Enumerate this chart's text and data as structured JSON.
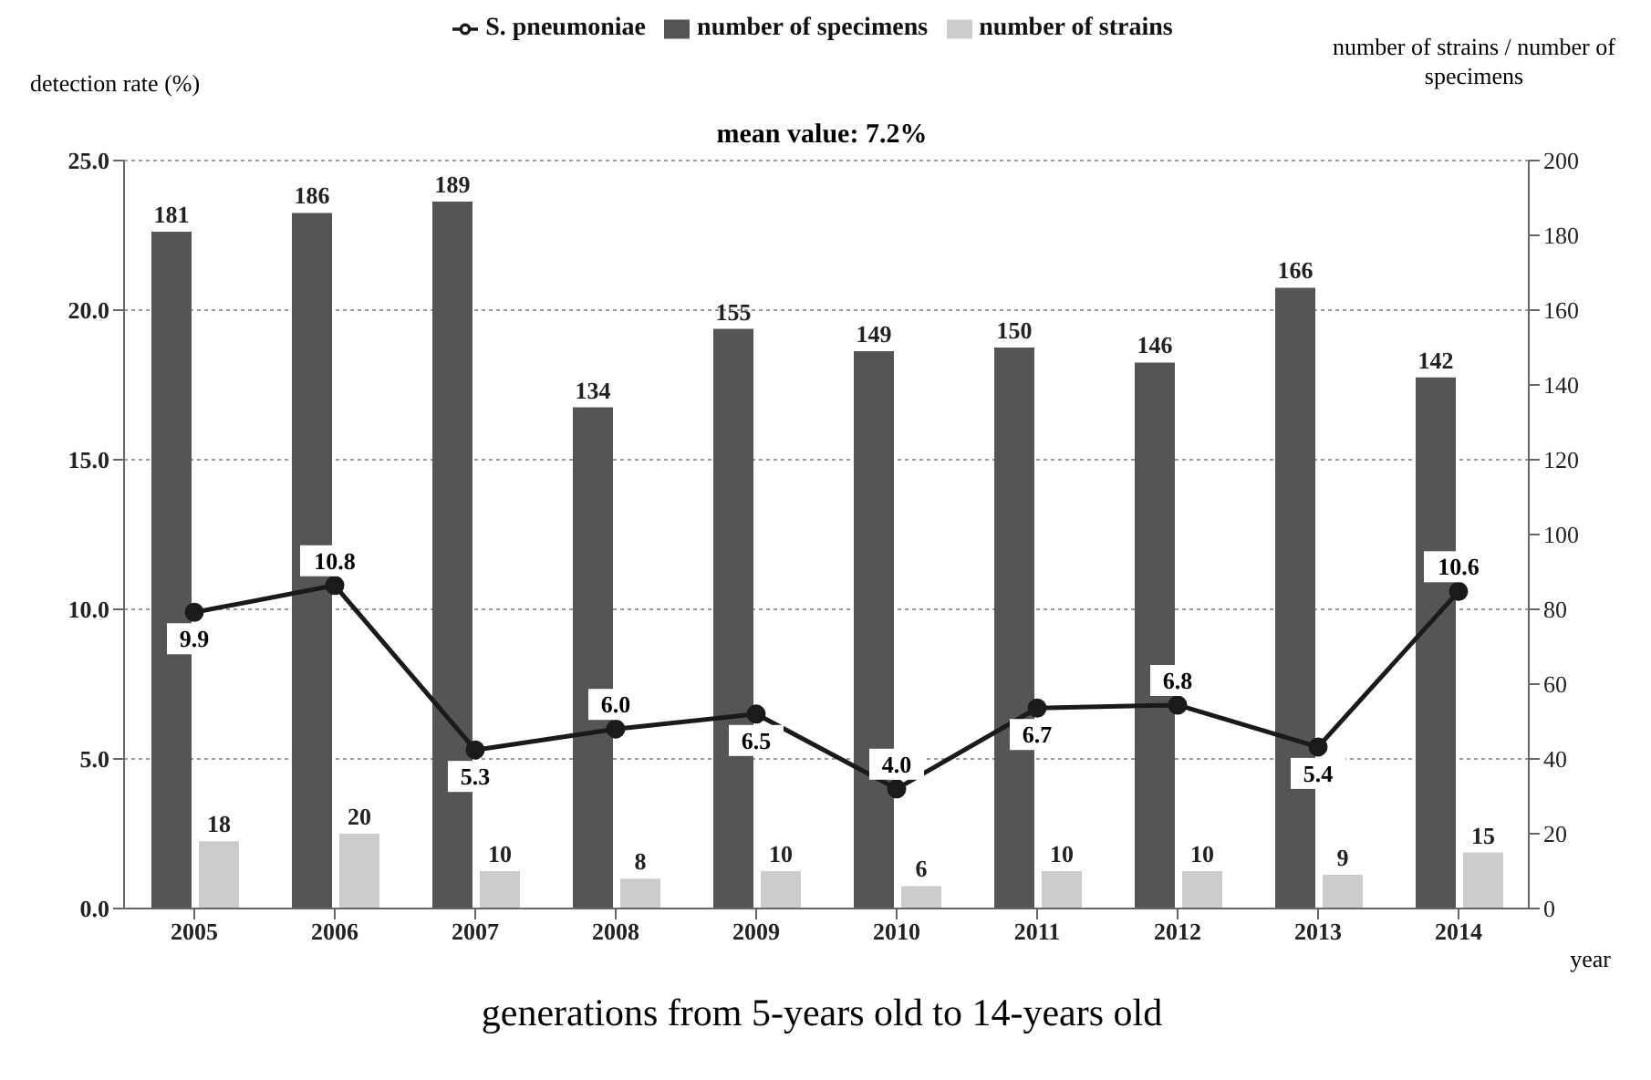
{
  "chart_data": {
    "type": "bar",
    "ylabel": "detection rate (%)",
    "y2label": "number of strains / number of specimens",
    "xlabel": "year",
    "annotations": [
      "mean value: 7.2%",
      "generations from 5-years old to 14-years old"
    ],
    "categories": [
      "2005",
      "2006",
      "2007",
      "2008",
      "2009",
      "2010",
      "2011",
      "2012",
      "2013",
      "2014"
    ],
    "series": [
      {
        "name": "number of specimens",
        "axis": "y2",
        "color": "#555555",
        "values": [
          181,
          186,
          189,
          134,
          155,
          149,
          150,
          146,
          166,
          142
        ]
      },
      {
        "name": "number of strains",
        "axis": "y2",
        "color": "#cccccc",
        "values": [
          18,
          20,
          10,
          8,
          10,
          6,
          10,
          10,
          9,
          15
        ]
      },
      {
        "name": "S. pneumoniae",
        "type": "line",
        "axis": "y",
        "color": "#1a1a1a",
        "values": [
          9.9,
          10.8,
          5.3,
          6.0,
          6.5,
          4.0,
          6.7,
          6.8,
          5.4,
          10.6
        ],
        "value_labels": [
          "9.9",
          "10.8",
          "5.3",
          "6.0",
          "6.5",
          "4.0",
          "6.7",
          "6.8",
          "5.4",
          "10.6"
        ]
      }
    ],
    "ylim": [
      0,
      25
    ],
    "yticks": [
      {
        "value": 0,
        "label": "0.0"
      },
      {
        "value": 5,
        "label": "5.0"
      },
      {
        "value": 10,
        "label": "10.0"
      },
      {
        "value": 15,
        "label": "15.0"
      },
      {
        "value": 20,
        "label": "20.0"
      },
      {
        "value": 25,
        "label": "25.0"
      }
    ],
    "y2lim": [
      0,
      200
    ],
    "y2ticks": [
      0,
      20,
      40,
      60,
      80,
      100,
      120,
      140,
      160,
      180,
      200
    ],
    "data_labels": true,
    "grid": "y",
    "legend": "top",
    "marker": "circle"
  }
}
